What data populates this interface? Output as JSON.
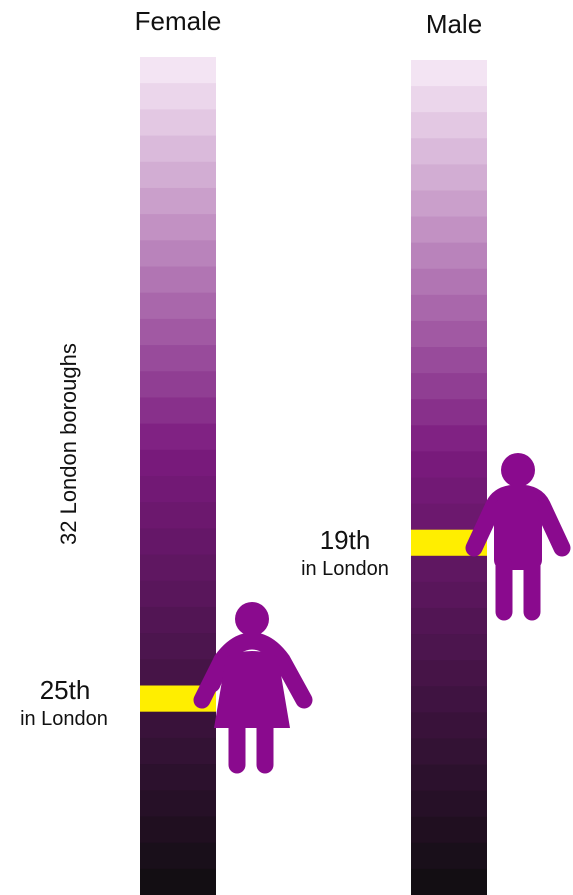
{
  "chart_data": {
    "type": "bar",
    "ylabel": "32 London boroughs",
    "total_boroughs": 32,
    "series": [
      {
        "name": "Female",
        "rank": 25,
        "rank_label": "25th",
        "rank_sub": "in London",
        "icon": "female-figure-icon"
      },
      {
        "name": "Male",
        "rank": 19,
        "rank_label": "19th",
        "rank_sub": "in London",
        "icon": "male-figure-icon"
      }
    ]
  },
  "colors": {
    "gradient_top": "#f3e4f3",
    "gradient_mid": "#7b1a7e",
    "gradient_bottom": "#130e13",
    "highlight": "#ffee00",
    "figure": "#8a0a8e"
  }
}
